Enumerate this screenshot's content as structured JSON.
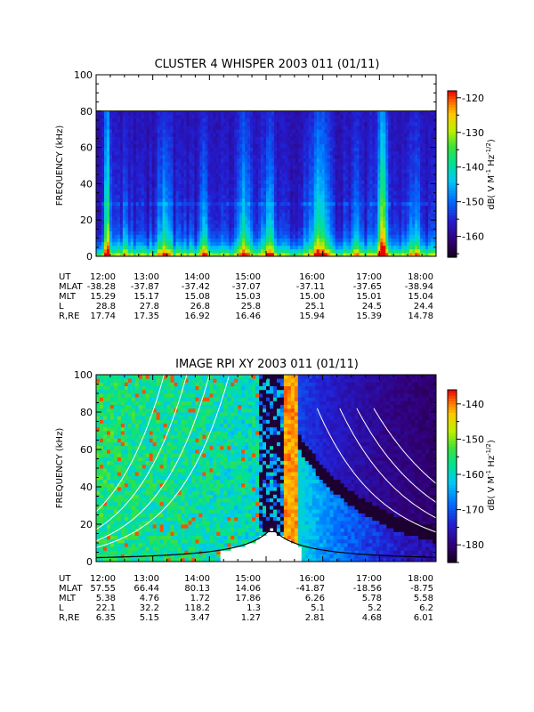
{
  "chart_data": [
    {
      "type": "heatmap",
      "title": "CLUSTER 4 WHISPER 2003 011 (01/11)",
      "ylabel": "FREQUENCY (kHz)",
      "ylim": [
        0,
        100
      ],
      "yticks": [
        "0",
        "20",
        "40",
        "60",
        "80",
        "100"
      ],
      "data_ceiling_khz": 80,
      "colorbar": {
        "label": "dB( V M",
        "label_exp1": "-1",
        "label_mid": " Hz",
        "label_exp2": "-1/2",
        "label_end": ")",
        "ticks": [
          "-120",
          "-130",
          "-140",
          "-150",
          "-160"
        ],
        "tick_values": [
          -120,
          -130,
          -140,
          -150,
          -160
        ],
        "range": [
          -166,
          -118
        ]
      },
      "x_ticks": [
        "12:00",
        "13:00",
        "14:00",
        "15:00",
        "16:00",
        "17:00",
        "18:00"
      ],
      "ephemeris": [
        {
          "label": "UT",
          "values": [
            "12:00",
            "13:00",
            "14:00",
            "15:00",
            "16:00",
            "17:00",
            "18:00"
          ]
        },
        {
          "label": "MLAT",
          "values": [
            "-38.28",
            "-37.87",
            "-37.42",
            "-37.07",
            "-37.11",
            "-37.65",
            "-38.94"
          ]
        },
        {
          "label": "MLT",
          "values": [
            "15.29",
            "15.17",
            "15.08",
            "15.03",
            "15.00",
            "15.01",
            "15.04"
          ]
        },
        {
          "label": "L",
          "values": [
            "28.8",
            "27.8",
            "26.8",
            "25.8",
            "25.1",
            "24.5",
            "24.4"
          ]
        },
        {
          "label": "R,RE",
          "values": [
            "17.74",
            "17.35",
            "16.92",
            "16.46",
            "15.94",
            "15.39",
            "14.78"
          ]
        }
      ]
    },
    {
      "type": "heatmap",
      "title": "IMAGE RPI XY 2003 011 (01/11)",
      "ylabel": "FREQUENCY (kHz)",
      "ylim": [
        0,
        100
      ],
      "yticks": [
        "0",
        "20",
        "40",
        "60",
        "80",
        "100"
      ],
      "colorbar": {
        "label": "dB( V M",
        "label_exp1": "-1",
        "label_mid": " Hz",
        "label_exp2": "-1/2",
        "label_end": ")",
        "ticks": [
          "-140",
          "-150",
          "-160",
          "-170",
          "-180"
        ],
        "tick_values": [
          -140,
          -150,
          -160,
          -170,
          -180
        ],
        "range": [
          -185,
          -136
        ]
      },
      "x_ticks": [
        "12:00",
        "13:00",
        "14:00",
        "15:00",
        "16:00",
        "17:00",
        "18:00"
      ],
      "ephemeris": [
        {
          "label": "UT",
          "values": [
            "12:00",
            "13:00",
            "14:00",
            "15:00",
            "16:00",
            "17:00",
            "18:00"
          ]
        },
        {
          "label": "MLAT",
          "values": [
            "57.55",
            "66.44",
            "80.13",
            "14.06",
            "-41.87",
            "-18.56",
            "-8.75"
          ]
        },
        {
          "label": "MLT",
          "values": [
            "5.38",
            "4.76",
            "1.72",
            "17.86",
            "6.26",
            "5.78",
            "5.58"
          ]
        },
        {
          "label": "L",
          "values": [
            "22.1",
            "32.2",
            "118.2",
            "1.3",
            "5.1",
            "5.2",
            "6.2"
          ]
        },
        {
          "label": "R,RE",
          "values": [
            "6.35",
            "5.15",
            "3.47",
            "1.27",
            "2.81",
            "4.68",
            "6.01"
          ]
        }
      ]
    }
  ],
  "colors": {
    "background": "#ffffff",
    "axis": "#000000",
    "curve": "#ffffff"
  }
}
